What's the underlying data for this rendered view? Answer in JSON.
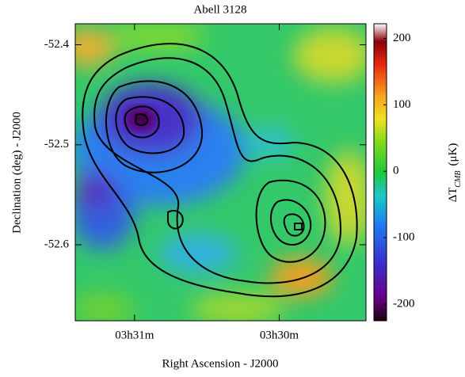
{
  "chart_data": {
    "type": "heatmap",
    "title": "Abell 3128",
    "x_label": "Right Ascension - J2000",
    "y_label": "Declination (deg) - J2000",
    "colorbar_label": {
      "main": "ΔT",
      "sub": "CMB",
      "unit": "(μK)"
    },
    "xlim": [
      3.5235,
      3.49
    ],
    "xticks": [
      {
        "value": 3.51667,
        "label": "03h31m"
      },
      {
        "value": 3.5,
        "label": "03h30m"
      }
    ],
    "ylim": [
      -52.676,
      -52.379
    ],
    "yticks": [
      -52.4,
      -52.5,
      -52.6
    ],
    "clim": [
      -225,
      222
    ],
    "cticks": [
      200,
      100,
      0,
      -100,
      -200
    ]
  }
}
